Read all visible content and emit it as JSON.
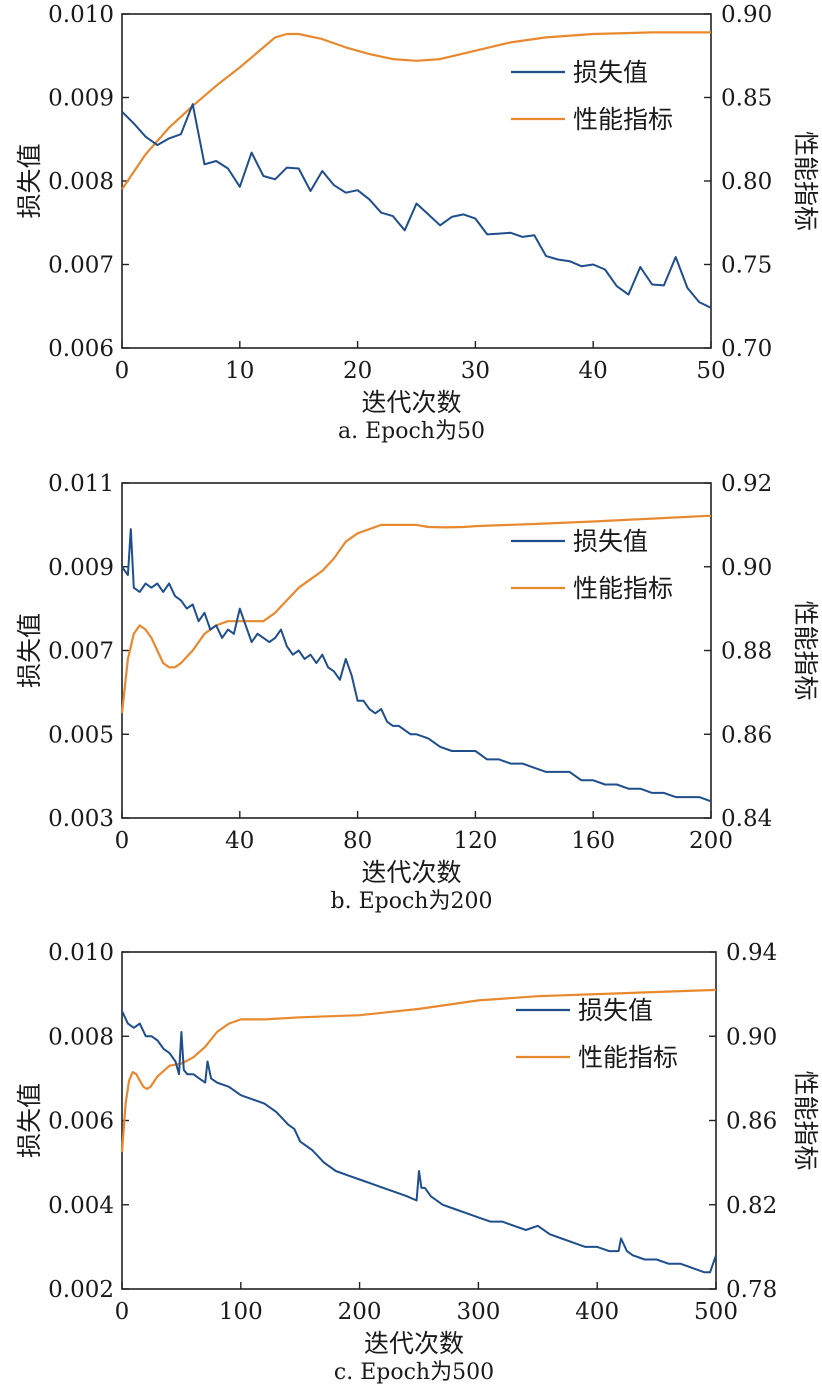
{
  "colors": {
    "loss": "#1f4e8c",
    "metric": "#e8892f",
    "axis": "#222222"
  },
  "chart_data": [
    {
      "type": "line",
      "caption": "a. Epoch为50",
      "xlabel": "迭代次数",
      "ylabel": "损失值",
      "y2label": "性能指标",
      "xlim": [
        0,
        50
      ],
      "xticks": [
        "0",
        "10",
        "20",
        "30",
        "40",
        "50"
      ],
      "ylim": [
        0.006,
        0.01
      ],
      "yticks": [
        "0.006",
        "0.007",
        "0.008",
        "0.009",
        "0.010"
      ],
      "y2lim": [
        0.7,
        0.9
      ],
      "y2ticks": [
        "0.70",
        "0.75",
        "0.80",
        "0.85",
        "0.90"
      ],
      "legend_position": "top-right",
      "series": [
        {
          "name": "损失值",
          "axis": "left",
          "x": [
            0,
            1,
            2,
            3,
            4,
            5,
            6,
            7,
            8,
            9,
            10,
            11,
            12,
            13,
            14,
            15,
            16,
            17,
            18,
            19,
            20,
            21,
            22,
            23,
            24,
            25,
            26,
            27,
            28,
            29,
            30,
            31,
            32,
            33,
            34,
            35,
            36,
            37,
            38,
            39,
            40,
            41,
            42,
            43,
            44,
            45,
            46,
            47,
            48,
            49,
            50
          ],
          "values": [
            0.00883,
            0.00869,
            0.00853,
            0.00843,
            0.00851,
            0.00856,
            0.00892,
            0.0082,
            0.00824,
            0.00815,
            0.00793,
            0.00834,
            0.00806,
            0.00802,
            0.00816,
            0.00815,
            0.00788,
            0.00812,
            0.00795,
            0.00786,
            0.00789,
            0.00778,
            0.00762,
            0.00758,
            0.00741,
            0.00773,
            0.0076,
            0.00747,
            0.00757,
            0.0076,
            0.00755,
            0.00736,
            0.00737,
            0.00738,
            0.00733,
            0.00735,
            0.0071,
            0.00706,
            0.00704,
            0.00698,
            0.007,
            0.00694,
            0.00674,
            0.00664,
            0.00697,
            0.00676,
            0.00675,
            0.00709,
            0.00672,
            0.00655,
            0.00648
          ]
        },
        {
          "name": "性能指标",
          "axis": "right",
          "x": [
            0,
            2,
            4,
            6,
            8,
            10,
            12,
            13,
            14,
            15,
            17,
            19,
            21,
            23,
            25,
            27,
            30,
            33,
            36,
            40,
            45,
            50
          ],
          "values": [
            0.795,
            0.816,
            0.832,
            0.845,
            0.857,
            0.868,
            0.88,
            0.886,
            0.888,
            0.888,
            0.885,
            0.88,
            0.876,
            0.873,
            0.872,
            0.873,
            0.878,
            0.883,
            0.886,
            0.888,
            0.889,
            0.889
          ]
        }
      ]
    },
    {
      "type": "line",
      "caption": "b. Epoch为200",
      "xlabel": "迭代次数",
      "ylabel": "损失值",
      "y2label": "性能指标",
      "xlim": [
        0,
        200
      ],
      "xticks": [
        "0",
        "40",
        "80",
        "120",
        "160",
        "200"
      ],
      "ylim": [
        0.003,
        0.011
      ],
      "yticks": [
        "0.003",
        "0.005",
        "0.007",
        "0.009",
        "0.011"
      ],
      "y2lim": [
        0.84,
        0.92
      ],
      "y2ticks": [
        "0.84",
        "0.86",
        "0.88",
        "0.90",
        "0.92"
      ],
      "legend_position": "top-right",
      "series": [
        {
          "name": "损失值",
          "axis": "left",
          "x": [
            0,
            2,
            3,
            4,
            6,
            8,
            10,
            12,
            14,
            16,
            18,
            20,
            22,
            24,
            26,
            28,
            30,
            32,
            34,
            36,
            38,
            40,
            42,
            44,
            46,
            48,
            50,
            52,
            54,
            56,
            58,
            60,
            62,
            64,
            66,
            68,
            70,
            72,
            74,
            76,
            78,
            80,
            82,
            84,
            86,
            88,
            90,
            92,
            94,
            96,
            98,
            100,
            104,
            108,
            112,
            116,
            120,
            124,
            128,
            132,
            136,
            140,
            144,
            148,
            152,
            156,
            160,
            164,
            168,
            172,
            176,
            180,
            184,
            188,
            192,
            196,
            200
          ],
          "values": [
            0.009,
            0.0088,
            0.0099,
            0.0085,
            0.0084,
            0.0086,
            0.0085,
            0.0086,
            0.0084,
            0.0086,
            0.0083,
            0.0082,
            0.008,
            0.0081,
            0.0077,
            0.0079,
            0.0075,
            0.0076,
            0.0073,
            0.0075,
            0.0074,
            0.008,
            0.0076,
            0.0072,
            0.0074,
            0.0073,
            0.0072,
            0.0073,
            0.0075,
            0.0071,
            0.0069,
            0.007,
            0.0068,
            0.0069,
            0.0067,
            0.0069,
            0.0066,
            0.0065,
            0.0063,
            0.0068,
            0.0064,
            0.0058,
            0.0058,
            0.0056,
            0.0055,
            0.0056,
            0.0053,
            0.0052,
            0.0052,
            0.0051,
            0.005,
            0.005,
            0.0049,
            0.0047,
            0.0046,
            0.0046,
            0.0046,
            0.0044,
            0.0044,
            0.0043,
            0.0043,
            0.0042,
            0.0041,
            0.0041,
            0.0041,
            0.0039,
            0.0039,
            0.0038,
            0.0038,
            0.0037,
            0.0037,
            0.0036,
            0.0036,
            0.0035,
            0.0035,
            0.0035,
            0.0034
          ]
        },
        {
          "name": "性能指标",
          "axis": "right",
          "x": [
            0,
            2,
            4,
            6,
            8,
            10,
            12,
            14,
            16,
            18,
            20,
            24,
            28,
            32,
            36,
            40,
            44,
            48,
            52,
            56,
            60,
            64,
            68,
            72,
            76,
            80,
            84,
            88,
            92,
            96,
            100,
            104,
            110,
            116,
            120,
            140,
            160,
            180,
            200
          ],
          "values": [
            0.865,
            0.878,
            0.884,
            0.886,
            0.885,
            0.883,
            0.88,
            0.877,
            0.876,
            0.876,
            0.877,
            0.88,
            0.884,
            0.886,
            0.887,
            0.887,
            0.887,
            0.887,
            0.889,
            0.892,
            0.895,
            0.897,
            0.899,
            0.902,
            0.906,
            0.908,
            0.909,
            0.91,
            0.91,
            0.91,
            0.91,
            0.9095,
            0.9094,
            0.9095,
            0.9097,
            0.9102,
            0.9108,
            0.9115,
            0.9122
          ]
        }
      ]
    },
    {
      "type": "line",
      "caption": "c. Epoch为500",
      "xlabel": "迭代次数",
      "ylabel": "损失值",
      "y2label": "性能指标",
      "xlim": [
        0,
        500
      ],
      "xticks": [
        "0",
        "100",
        "200",
        "300",
        "400",
        "500"
      ],
      "ylim": [
        0.002,
        0.01
      ],
      "yticks": [
        "0.002",
        "0.004",
        "0.006",
        "0.008",
        "0.010"
      ],
      "y2lim": [
        0.78,
        0.94
      ],
      "y2ticks": [
        "0.78",
        "0.82",
        "0.86",
        "0.90",
        "0.94"
      ],
      "legend_position": "top-right",
      "series": [
        {
          "name": "损失值",
          "axis": "left",
          "x": [
            0,
            5,
            10,
            15,
            20,
            25,
            30,
            35,
            40,
            45,
            48,
            50,
            52,
            55,
            60,
            65,
            70,
            72,
            75,
            80,
            90,
            100,
            110,
            120,
            130,
            140,
            145,
            150,
            160,
            170,
            180,
            190,
            200,
            210,
            220,
            230,
            240,
            248,
            250,
            252,
            255,
            260,
            270,
            280,
            290,
            300,
            310,
            320,
            330,
            340,
            350,
            360,
            370,
            380,
            390,
            400,
            410,
            418,
            420,
            425,
            430,
            440,
            450,
            460,
            470,
            480,
            490,
            495,
            500
          ],
          "values": [
            0.0086,
            0.0083,
            0.0082,
            0.0083,
            0.008,
            0.008,
            0.0079,
            0.0077,
            0.0076,
            0.0074,
            0.0071,
            0.0081,
            0.0072,
            0.0071,
            0.0071,
            0.007,
            0.0069,
            0.0074,
            0.007,
            0.0069,
            0.0068,
            0.0066,
            0.0065,
            0.0064,
            0.0062,
            0.0059,
            0.0058,
            0.0055,
            0.0053,
            0.005,
            0.0048,
            0.0047,
            0.0046,
            0.0045,
            0.0044,
            0.0043,
            0.0042,
            0.0041,
            0.0048,
            0.0044,
            0.0044,
            0.0042,
            0.004,
            0.0039,
            0.0038,
            0.0037,
            0.0036,
            0.0036,
            0.0035,
            0.0034,
            0.0035,
            0.0033,
            0.0032,
            0.0031,
            0.003,
            0.003,
            0.0029,
            0.0029,
            0.0032,
            0.0029,
            0.0028,
            0.0027,
            0.0027,
            0.0026,
            0.0026,
            0.0025,
            0.0024,
            0.0024,
            0.0028
          ]
        },
        {
          "name": "性能指标",
          "axis": "right",
          "x": [
            0,
            3,
            6,
            9,
            12,
            15,
            18,
            21,
            24,
            30,
            40,
            50,
            60,
            70,
            80,
            90,
            100,
            110,
            120,
            150,
            200,
            250,
            300,
            350,
            400,
            450,
            500
          ],
          "values": [
            0.845,
            0.868,
            0.879,
            0.883,
            0.882,
            0.879,
            0.876,
            0.875,
            0.876,
            0.881,
            0.886,
            0.887,
            0.89,
            0.895,
            0.902,
            0.906,
            0.908,
            0.908,
            0.908,
            0.909,
            0.91,
            0.913,
            0.917,
            0.919,
            0.92,
            0.921,
            0.922
          ]
        }
      ]
    }
  ]
}
